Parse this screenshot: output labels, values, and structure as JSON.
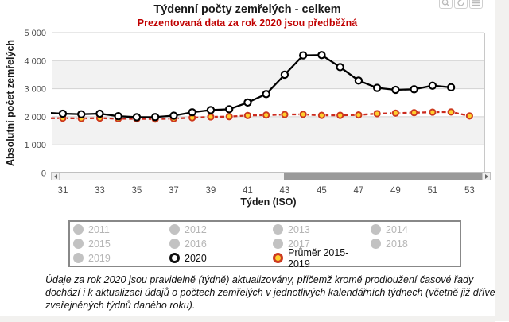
{
  "header": {
    "title": "Týdenní počty zemřelých - celkem",
    "subtitle": "Prezentovaná data za rok 2020 jsou předběžná"
  },
  "toolbar": {
    "icons": [
      "magnifier-icon",
      "reset-icon",
      "menu-icon"
    ]
  },
  "chart_data": {
    "type": "line",
    "title": "Týdenní počty zemřelých - celkem",
    "subtitle": "Prezentovaná data za rok 2020 jsou předběžná",
    "xlabel": "Týden (ISO)",
    "ylabel": "Absolutní počet zemřelých",
    "x_ticks": [
      31,
      33,
      35,
      37,
      39,
      41,
      43,
      45,
      47,
      49,
      51,
      53
    ],
    "y_ticks": [
      0,
      1000,
      2000,
      3000,
      4000,
      5000
    ],
    "xlim": [
      30.4,
      53.8
    ],
    "ylim": [
      0,
      5000
    ],
    "grid": true,
    "band_fill_alt": "#f2f2f2",
    "legend_position": "bottom-box",
    "series": [
      {
        "name": "Průměr 2015-2019",
        "line_color": "#cc2a1e",
        "dash": "dashed",
        "marker_fill": "#ffd02e",
        "marker_stroke": "#cc3a1f",
        "x": [
          30,
          31,
          32,
          33,
          34,
          35,
          36,
          37,
          38,
          39,
          40,
          41,
          42,
          43,
          44,
          45,
          46,
          47,
          48,
          49,
          50,
          51,
          52,
          53
        ],
        "values": [
          1945,
          1950,
          1940,
          1950,
          1930,
          1925,
          1920,
          1935,
          1965,
          1995,
          2005,
          2045,
          2060,
          2080,
          2085,
          2050,
          2050,
          2065,
          2110,
          2130,
          2145,
          2165,
          2170,
          2030
        ]
      },
      {
        "name": "2020",
        "line_color": "#000000",
        "dash": "solid",
        "marker_fill": "#ffffff",
        "marker_stroke": "#000000",
        "x": [
          30,
          31,
          32,
          33,
          34,
          35,
          36,
          37,
          38,
          39,
          40,
          41,
          42,
          43,
          44,
          45,
          46,
          47,
          48,
          49,
          50,
          51,
          52
        ],
        "values": [
          2150,
          2110,
          2090,
          2110,
          2020,
          1985,
          1990,
          2040,
          2160,
          2240,
          2270,
          2510,
          2810,
          3500,
          4190,
          4200,
          3770,
          3290,
          3030,
          2960,
          2980,
          3110,
          3050
        ]
      }
    ]
  },
  "legend": {
    "items": [
      {
        "label": "2011",
        "state": "inactive"
      },
      {
        "label": "2012",
        "state": "inactive"
      },
      {
        "label": "2013",
        "state": "inactive"
      },
      {
        "label": "2014",
        "state": "inactive"
      },
      {
        "label": "2015",
        "state": "inactive"
      },
      {
        "label": "2016",
        "state": "inactive"
      },
      {
        "label": "2017",
        "state": "inactive"
      },
      {
        "label": "2018",
        "state": "inactive"
      },
      {
        "label": "2019",
        "state": "inactive"
      },
      {
        "label": "2020",
        "state": "s2020"
      },
      {
        "label": "Průměr 2015-2019",
        "state": "savg"
      }
    ]
  },
  "footnote": "Údaje za rok 2020 jsou pravidelně (týdně) aktualizovány, přičemž kromě prodloužení časové řady dochází i k aktualizaci údajů o počtech zemřelých v jednotlivých kalendářních týdnech (včetně již dříve zveřejněných týdnů daného roku)."
}
